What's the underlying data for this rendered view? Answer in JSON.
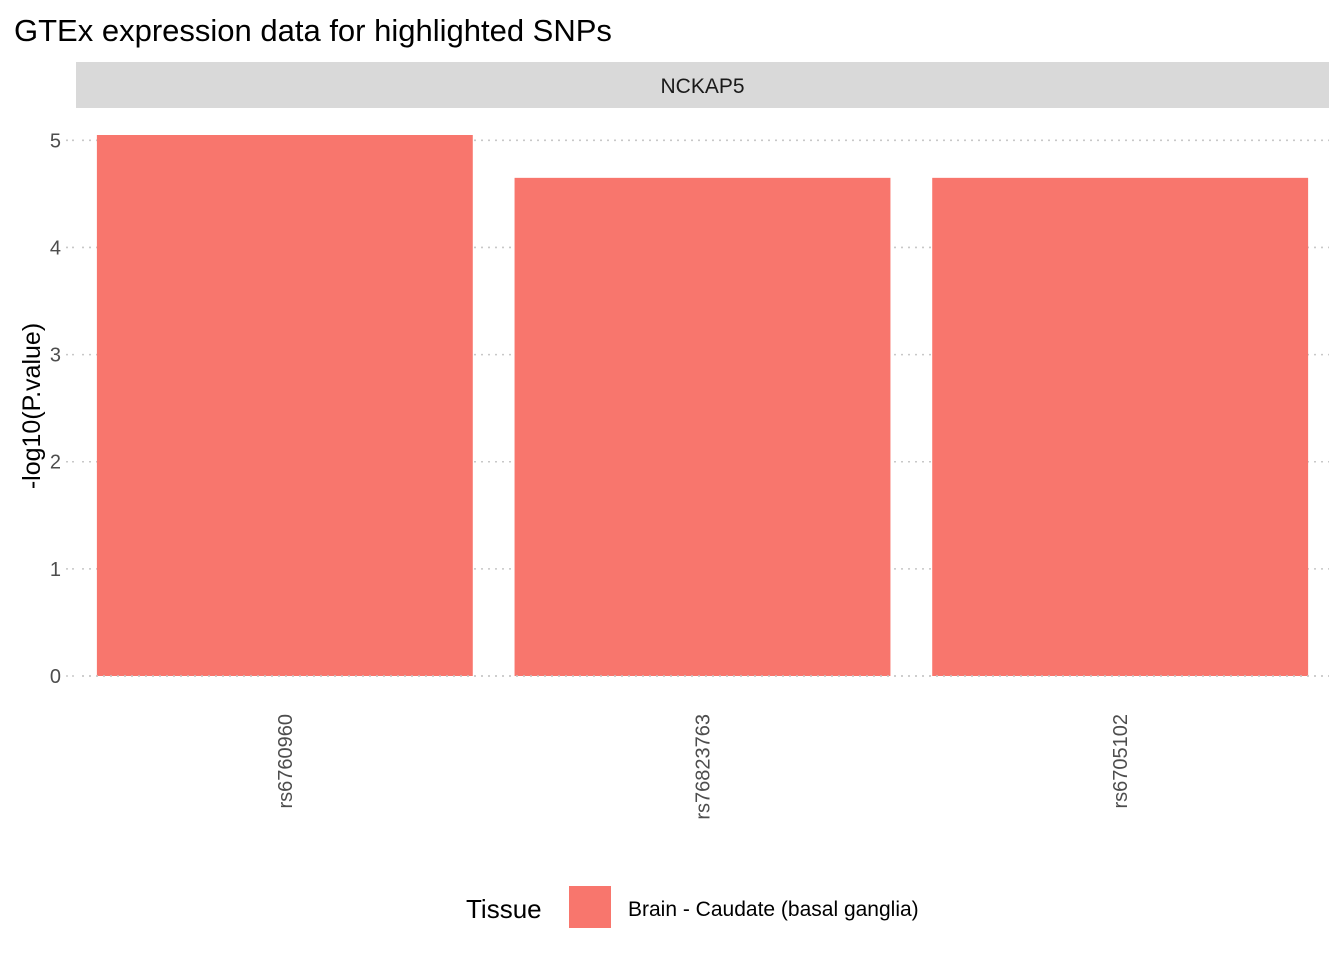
{
  "chart_data": {
    "type": "bar",
    "title": "GTEx expression data for highlighted SNPs",
    "facet": "NCKAP5",
    "categories": [
      "rs6760960",
      "rs76823763",
      "rs6705102"
    ],
    "series": [
      {
        "name": "Brain - Caudate (basal ganglia)",
        "values": [
          5.05,
          4.65,
          4.65
        ],
        "color": "#F8766D"
      }
    ],
    "xlabel": "",
    "ylabel": "-log10(P.value)",
    "ylim": [
      0,
      5.05
    ],
    "yticks": [
      0,
      1,
      2,
      3,
      4,
      5
    ],
    "grid": true,
    "legend": {
      "title": "Tissue",
      "position": "bottom"
    },
    "colors": {
      "strip_background": "#d9d9d9",
      "grid": "#c8c8c8"
    }
  }
}
